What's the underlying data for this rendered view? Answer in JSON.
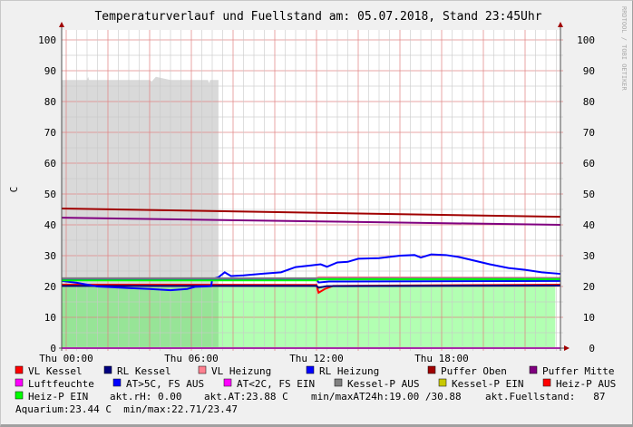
{
  "chart_data": {
    "type": "line",
    "title": "Temperaturverlauf und Fuellstand am: 05.07.2018, Stand 23:45Uhr",
    "ylabel": "C",
    "xlabel": "",
    "watermark": "RRDTOOL / TOBI OETIKER",
    "ylim": [
      0,
      103
    ],
    "xlim_hours": [
      -0.2,
      23.7
    ],
    "y_ticks": [
      0,
      10,
      20,
      30,
      40,
      50,
      60,
      70,
      80,
      90,
      100
    ],
    "x_ticks": [
      {
        "hour": 0,
        "label": "Thu 00:00"
      },
      {
        "hour": 6,
        "label": "Thu 06:00"
      },
      {
        "hour": 12,
        "label": "Thu 12:00"
      },
      {
        "hour": 18,
        "label": "Thu 18:00"
      }
    ],
    "grid": true,
    "legend_position": "bottom",
    "areas": [
      {
        "name": "akt.Fuellstand",
        "color": "#c0c0c0",
        "points": [
          [
            -0.2,
            87
          ],
          [
            1,
            87
          ],
          [
            1.05,
            88
          ],
          [
            1.1,
            87
          ],
          [
            4,
            87
          ],
          [
            4.1,
            86.5
          ],
          [
            4.3,
            88
          ],
          [
            5,
            87
          ],
          [
            6.8,
            87
          ],
          [
            6.85,
            86
          ],
          [
            6.9,
            87
          ],
          [
            7.3,
            87
          ]
        ]
      },
      {
        "name": "Heiz-P EIN",
        "color": "#00ff00",
        "points": [
          [
            -0.2,
            20.1
          ],
          [
            23.45,
            20.1
          ]
        ]
      }
    ],
    "series": [
      {
        "name": "VL Kessel",
        "color": "#ff0000",
        "points": [
          [
            -0.2,
            20.6
          ],
          [
            12.0,
            20.5
          ],
          [
            12.1,
            18.0
          ],
          [
            12.4,
            19.2
          ],
          [
            12.8,
            20.2
          ],
          [
            23.7,
            20.6
          ]
        ]
      },
      {
        "name": "RL Kessel",
        "color": "#000080",
        "points": [
          [
            -0.2,
            20.2
          ],
          [
            12.0,
            20.2
          ],
          [
            12.1,
            19.6
          ],
          [
            12.5,
            20.1
          ],
          [
            23.7,
            20.3
          ]
        ]
      },
      {
        "name": "VL Heizung",
        "color": "#ff8090",
        "points": [
          [
            -0.2,
            22.4
          ],
          [
            12.0,
            22.6
          ],
          [
            12.1,
            23.0
          ],
          [
            23.7,
            22.8
          ]
        ]
      },
      {
        "name": "RL Heizung",
        "color": "#0000ff",
        "points": [
          [
            -0.2,
            21.8
          ],
          [
            0.5,
            21.2
          ],
          [
            1.5,
            20.0
          ],
          [
            3,
            19.5
          ],
          [
            4,
            19.2
          ],
          [
            5,
            18.8
          ],
          [
            5.8,
            19.2
          ],
          [
            6.2,
            19.9
          ],
          [
            6.95,
            20.1
          ],
          [
            7.0,
            22.4
          ],
          [
            7.3,
            23.0
          ],
          [
            7.6,
            24.6
          ],
          [
            7.9,
            23.4
          ],
          [
            8.5,
            23.6
          ],
          [
            9.5,
            24.2
          ],
          [
            10.3,
            24.6
          ],
          [
            11,
            26.3
          ],
          [
            11.7,
            26.8
          ],
          [
            12.2,
            27.2
          ],
          [
            12.5,
            26.4
          ],
          [
            13,
            27.8
          ],
          [
            13.5,
            28.0
          ],
          [
            14,
            29.0
          ],
          [
            15,
            29.2
          ],
          [
            16,
            30.0
          ],
          [
            16.7,
            30.2
          ],
          [
            17,
            29.4
          ],
          [
            17.5,
            30.4
          ],
          [
            18.2,
            30.2
          ],
          [
            18.8,
            29.6
          ],
          [
            19.5,
            28.5
          ],
          [
            20.3,
            27.2
          ],
          [
            21.2,
            26.0
          ],
          [
            22,
            25.4
          ],
          [
            22.8,
            24.6
          ],
          [
            23.7,
            24.1
          ]
        ]
      },
      {
        "name": "Puffer Oben",
        "color": "#a00000",
        "points": [
          [
            -0.2,
            45.3
          ],
          [
            23.7,
            42.6
          ]
        ]
      },
      {
        "name": "Puffer Mitte",
        "color": "#800080",
        "points": [
          [
            -0.2,
            42.3
          ],
          [
            23.7,
            40.0
          ]
        ]
      },
      {
        "name": "Luftfeuchte",
        "color": "#ff00ff",
        "points": [
          [
            -0.2,
            0
          ],
          [
            23.7,
            0
          ]
        ]
      },
      {
        "name": "AT>5C, FS AUS",
        "color": "#0000ff",
        "points": [
          [
            -0.2,
            22.4
          ],
          [
            12.0,
            22.4
          ],
          [
            12.1,
            21.3
          ],
          [
            12.6,
            21.6
          ],
          [
            23.7,
            21.8
          ]
        ]
      },
      {
        "name": "Kessel-P AUS",
        "color": "#808080",
        "points": [
          [
            -0.2,
            22.7
          ],
          [
            23.7,
            22.7
          ]
        ]
      },
      {
        "name": "Heiz-P EIN",
        "color": "#00ff00",
        "points": [
          [
            -0.2,
            22.0
          ],
          [
            12.0,
            22.0
          ],
          [
            12.1,
            22.3
          ],
          [
            23.7,
            22.3
          ]
        ]
      }
    ],
    "legend": [
      [
        {
          "label": "VL Kessel",
          "color": "#ff0000"
        },
        {
          "label": "RL Kessel",
          "color": "#000080"
        },
        {
          "label": "VL Heizung",
          "color": "#ff8090"
        },
        {
          "label": "RL Heizung",
          "color": "#0000ff"
        },
        {
          "label": "Puffer Oben",
          "color": "#a00000"
        },
        {
          "label": "Puffer Mitte",
          "color": "#800080"
        }
      ],
      [
        {
          "label": "Luftfeuchte",
          "color": "#ff00ff"
        },
        {
          "label": "AT>5C, FS AUS",
          "color": "#0000ff"
        },
        {
          "label": "AT<2C, FS EIN",
          "color": "#ff00ff"
        },
        {
          "label": "Kessel-P AUS",
          "color": "#808080"
        },
        {
          "label": "Kessel-P EIN",
          "color": "#c8c800"
        },
        {
          "label": "Heiz-P AUS",
          "color": "#ff0000"
        }
      ],
      [
        {
          "label": "Heiz-P EIN",
          "color": "#00ff00"
        }
      ]
    ],
    "stats": {
      "akt_rh": "akt.rH: 0.00",
      "akt_at": "akt.AT:23.88 C",
      "minmax_at": "min/maxAT24h:19.00 /30.88",
      "fuellstand": "akt.Fuellstand:   87",
      "aquarium": "Aquarium:23.44 C  min/max:22.71/23.47"
    }
  }
}
